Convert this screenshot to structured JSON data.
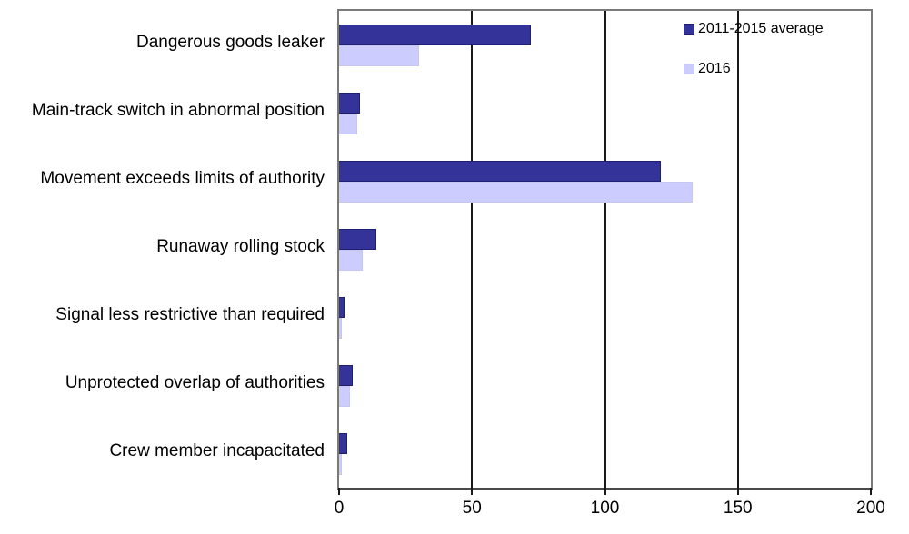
{
  "chart_data": {
    "type": "bar",
    "orientation": "horizontal",
    "title": "",
    "xlabel": "",
    "ylabel": "",
    "categories": [
      "Dangerous goods leaker",
      "Main-track switch in abnormal position",
      "Movement exceeds limits of authority",
      "Runaway rolling stock",
      "Signal less restrictive than required",
      "Unprotected overlap of authorities",
      "Crew member incapacitated"
    ],
    "series": [
      {
        "name": "2011-2015 average",
        "color": "#333399",
        "border_color": "#1f1f73",
        "values": [
          72,
          8,
          121,
          14,
          2,
          5,
          3
        ]
      },
      {
        "name": "2016",
        "color": "#ccccff",
        "border_color": "#c6c6f0",
        "values": [
          30,
          7,
          133,
          9,
          1,
          4,
          1
        ]
      }
    ],
    "xlim": [
      0,
      200
    ],
    "xticks": [
      0,
      50,
      100,
      150,
      200
    ],
    "grid": "vertical gridlines at interior ticks",
    "legend_position": "top-right inside plot"
  }
}
